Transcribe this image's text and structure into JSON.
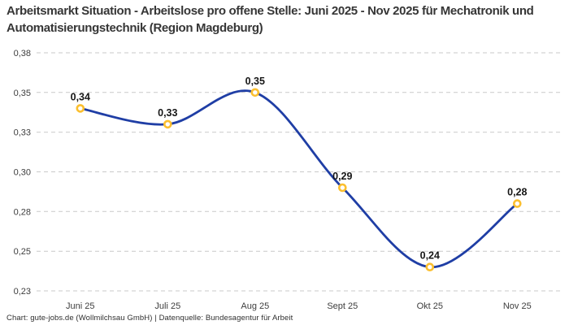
{
  "footer": "Chart: gute-jobs.de (Wollmilchsau GmbH) | Datenquelle: Bundesagentur für Arbeit",
  "chart_data": {
    "type": "line",
    "title": "Arbeitsmarkt Situation - Arbeitslose pro offene Stelle: Juni 2025 - Nov 2025 für Mechatronik und Automatisierungstechnik (Region Magdeburg)",
    "categories": [
      "Juni 25",
      "Juli 25",
      "Aug 25",
      "Sept 25",
      "Okt 25",
      "Nov 25"
    ],
    "values": [
      0.34,
      0.33,
      0.35,
      0.29,
      0.24,
      0.28
    ],
    "point_labels": [
      "0,34",
      "0,33",
      "0,35",
      "0,29",
      "0,24",
      "0,28"
    ],
    "plot_values": [
      0.345,
      0.335,
      0.355,
      0.295,
      0.245,
      0.285
    ],
    "xlabel": "",
    "ylabel": "",
    "y_axis": {
      "min": 0.23,
      "max": 0.38,
      "tick_values": [
        0.38,
        0.355,
        0.33,
        0.305,
        0.28,
        0.255,
        0.23
      ],
      "tick_labels": [
        "0,38",
        "0,35",
        "0,33",
        "0,30",
        "0,28",
        "0,25",
        "0,23"
      ]
    },
    "grid": "horizontal-dashed",
    "legend": "none",
    "line_style": "smooth",
    "colors": {
      "line": "#1f3ea5",
      "marker_ring": "#fbbf2f",
      "marker_fill": "#ffffff",
      "grid": "#c9c9c9",
      "point_label": "#161616",
      "axis_text": "#3d3d3d",
      "title": "#363636",
      "background": "#ffffff"
    }
  }
}
